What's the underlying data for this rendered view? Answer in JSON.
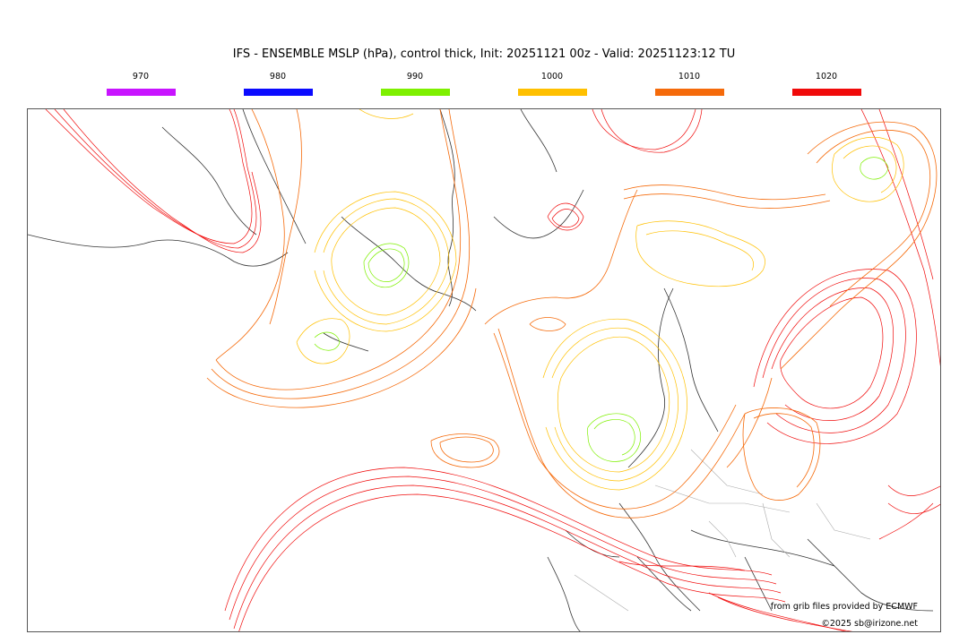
{
  "title": "IFS - ENSEMBLE MSLP (hPa), control thick, Init: 20251121 00z - Valid: 20251123:12 TU",
  "legend": [
    {
      "label": "970",
      "color": "#c814ff"
    },
    {
      "label": "980",
      "color": "#0a0aff"
    },
    {
      "label": "990",
      "color": "#7ef000"
    },
    {
      "label": "1000",
      "color": "#ffc000"
    },
    {
      "label": "1010",
      "color": "#f56a0a"
    },
    {
      "label": "1020",
      "color": "#f00a0a"
    }
  ],
  "credits": {
    "source": "from grib files provided by ECMWF",
    "copyright": "©2025 sb@irizone.net"
  }
}
